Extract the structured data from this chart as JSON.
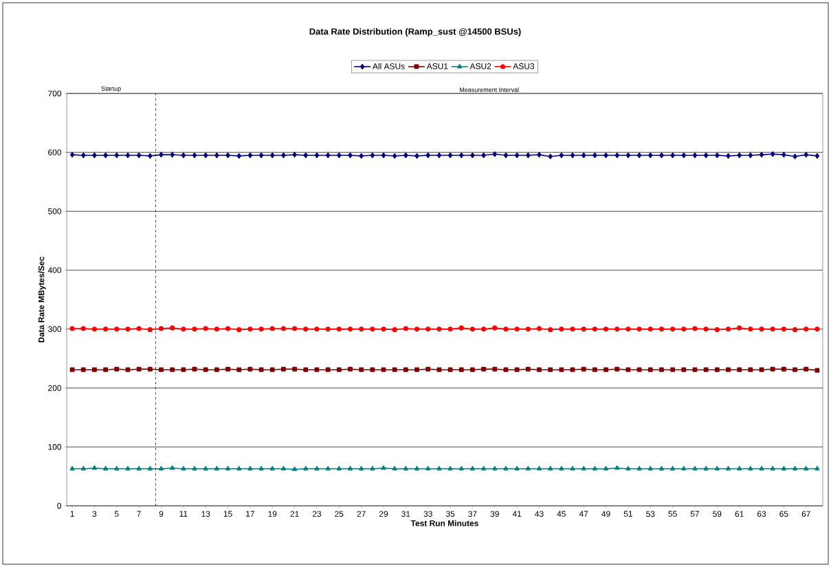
{
  "chart_data": {
    "type": "line",
    "title": "Data Rate Distribution (Ramp_sust @14500 BSUs)",
    "xlabel": "Test Run Minutes",
    "ylabel": "Data Rate MBytes/Sec",
    "x": [
      1,
      2,
      3,
      4,
      5,
      6,
      7,
      8,
      9,
      10,
      11,
      12,
      13,
      14,
      15,
      16,
      17,
      18,
      19,
      20,
      21,
      22,
      23,
      24,
      25,
      26,
      27,
      28,
      29,
      30,
      31,
      32,
      33,
      34,
      35,
      36,
      37,
      38,
      39,
      40,
      41,
      42,
      43,
      44,
      45,
      46,
      47,
      48,
      49,
      50,
      51,
      52,
      53,
      54,
      55,
      56,
      57,
      58,
      59,
      60,
      61,
      62,
      63,
      64,
      65,
      66,
      67,
      68
    ],
    "xlim": [
      0.5,
      68.5
    ],
    "xticks": [
      1,
      3,
      5,
      7,
      9,
      11,
      13,
      15,
      17,
      19,
      21,
      23,
      25,
      27,
      29,
      31,
      33,
      35,
      37,
      39,
      41,
      43,
      45,
      47,
      49,
      51,
      53,
      55,
      57,
      59,
      61,
      63,
      65,
      67
    ],
    "ylim": [
      0,
      700
    ],
    "yticks": [
      0,
      100,
      200,
      300,
      400,
      500,
      600,
      700
    ],
    "grid": "y",
    "legend": "top",
    "series": [
      {
        "name": "All ASUs",
        "color": "#000080",
        "marker": "diamond",
        "values": [
          596,
          595,
          595,
          595,
          595,
          595,
          595,
          594,
          596,
          596,
          595,
          595,
          595,
          595,
          595,
          594,
          595,
          595,
          595,
          595,
          596,
          595,
          595,
          595,
          595,
          595,
          594,
          595,
          595,
          594,
          595,
          594,
          595,
          595,
          595,
          595,
          595,
          595,
          597,
          595,
          595,
          595,
          596,
          593,
          595,
          595,
          595,
          595,
          595,
          595,
          595,
          595,
          595,
          595,
          595,
          595,
          595,
          595,
          595,
          594,
          595,
          595,
          596,
          597,
          596,
          593,
          596,
          594
        ]
      },
      {
        "name": "ASU1",
        "color": "#800000",
        "marker": "square",
        "values": [
          231,
          231,
          231,
          231,
          232,
          231,
          232,
          232,
          231,
          231,
          231,
          232,
          231,
          231,
          232,
          231,
          232,
          231,
          231,
          232,
          232,
          231,
          231,
          231,
          231,
          232,
          231,
          231,
          231,
          231,
          231,
          231,
          232,
          231,
          231,
          231,
          231,
          232,
          232,
          231,
          231,
          232,
          231,
          231,
          231,
          231,
          232,
          231,
          231,
          232,
          231,
          231,
          231,
          231,
          231,
          231,
          231,
          231,
          231,
          231,
          231,
          231,
          231,
          232,
          232,
          231,
          232,
          230
        ]
      },
      {
        "name": "ASU2",
        "color": "#008080",
        "marker": "triangle",
        "values": [
          63,
          63,
          64,
          63,
          63,
          63,
          63,
          63,
          63,
          64,
          63,
          63,
          63,
          63,
          63,
          63,
          63,
          63,
          63,
          63,
          62,
          63,
          63,
          63,
          63,
          63,
          63,
          63,
          64,
          63,
          63,
          63,
          63,
          63,
          63,
          63,
          63,
          63,
          63,
          63,
          63,
          63,
          63,
          63,
          63,
          63,
          63,
          63,
          63,
          64,
          63,
          63,
          63,
          63,
          63,
          63,
          63,
          63,
          63,
          63,
          63,
          63,
          63,
          63,
          63,
          63,
          63,
          63
        ]
      },
      {
        "name": "ASU3",
        "color": "#ff0000",
        "marker": "circle",
        "values": [
          301,
          301,
          300,
          300,
          300,
          300,
          301,
          299,
          301,
          302,
          300,
          300,
          301,
          300,
          301,
          299,
          300,
          300,
          301,
          301,
          301,
          300,
          300,
          300,
          300,
          300,
          300,
          300,
          300,
          299,
          301,
          300,
          300,
          300,
          300,
          302,
          300,
          300,
          302,
          300,
          300,
          300,
          301,
          299,
          300,
          300,
          300,
          300,
          300,
          300,
          300,
          300,
          300,
          300,
          300,
          300,
          301,
          300,
          299,
          300,
          302,
          300,
          300,
          300,
          300,
          299,
          300,
          300
        ]
      }
    ],
    "ref_lines": [
      {
        "axis": "x",
        "value": 8.5,
        "line_style": "dashdot",
        "color": "#000000"
      }
    ],
    "annotations": [
      "Startup",
      "Measurement Interval"
    ]
  }
}
